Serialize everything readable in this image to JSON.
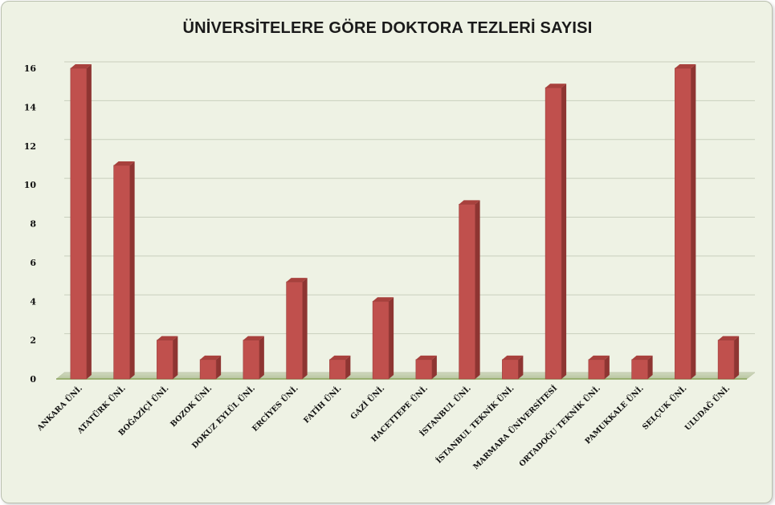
{
  "chart_data": {
    "type": "bar",
    "title": "ÜNİVERSİTELERE GÖRE DOKTORA TEZLERİ SAYISI",
    "xlabel": "",
    "ylabel": "",
    "ylim": [
      0,
      16
    ],
    "yticks": [
      0,
      2,
      4,
      6,
      8,
      10,
      12,
      14,
      16
    ],
    "grid": true,
    "legend": "none",
    "bar_color": "#c0504d",
    "categories": [
      "ANKARA ÜNİ.",
      "ATATÜRK ÜNİ.",
      "BOĞAZİÇİ ÜNİ.",
      "BOZOK ÜNİ.",
      "DOKUZ EYLÜL ÜNİ.",
      "ERCİYES ÜNİ.",
      "FATİH ÜNİ.",
      "GAZİ ÜNİ.",
      "HACETTEPE ÜNİ.",
      "İSTANBUL ÜNİ.",
      "İSTANBUL TEKNİK ÜNİ.",
      "MARMARA ÜNİVERSİTESİ",
      "ORTADOĞU TEKNİK ÜNİ.",
      "PAMUKKALE ÜNİ.",
      "SELÇUK ÜNİ.",
      "ULUDAĞ ÜNİ."
    ],
    "values": [
      16,
      11,
      2,
      1,
      2,
      5,
      1,
      4,
      1,
      9,
      1,
      15,
      1,
      1,
      16,
      2
    ]
  }
}
